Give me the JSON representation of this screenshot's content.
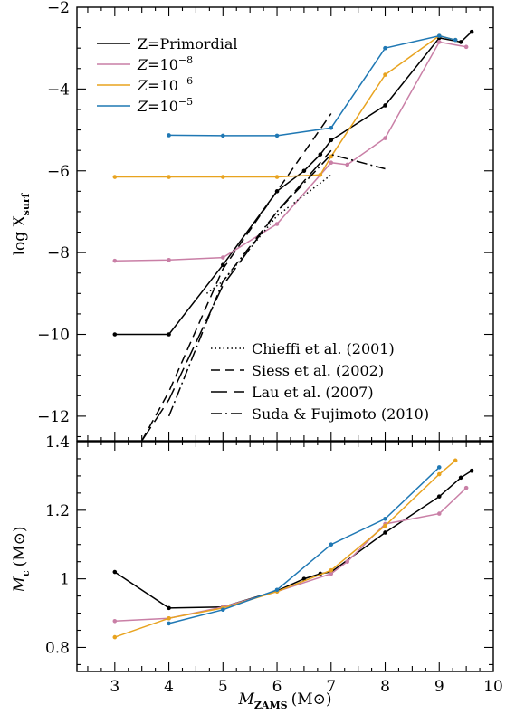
{
  "chart_data": [
    {
      "type": "line",
      "panel": "top",
      "ylabel": "log X",
      "ylabel_subscript": "surf",
      "xlim": [
        2.3,
        10
      ],
      "ylim": [
        -12.6,
        -2
      ],
      "yticks": [
        -12,
        -10,
        -8,
        -6,
        -4,
        -2
      ],
      "ytick_labels": [
        "−12",
        "−10",
        "−8",
        "−6",
        "−4",
        "−2"
      ],
      "xticks": [
        3,
        4,
        5,
        6,
        7,
        8,
        9,
        10
      ],
      "legend_position": "top-left",
      "series": [
        {
          "name": "Z=Primordial",
          "color": "#000000",
          "markers": true,
          "x": [
            3,
            4,
            5,
            6,
            6.5,
            6.8,
            7,
            8,
            9,
            9.4,
            9.6
          ],
          "y": [
            -10.0,
            -10.0,
            -8.3,
            -6.5,
            -6.0,
            -5.6,
            -5.25,
            -4.4,
            -2.75,
            -2.85,
            -2.6
          ]
        },
        {
          "name": "Z=10",
          "name_sup": "−8",
          "color": "#c97fa6",
          "markers": true,
          "x": [
            3,
            4,
            5,
            6,
            7,
            7.3,
            8,
            9,
            9.5
          ],
          "y": [
            -8.2,
            -8.18,
            -8.12,
            -7.3,
            -5.8,
            -5.85,
            -5.2,
            -2.85,
            -2.97
          ]
        },
        {
          "name": "Z=10",
          "name_sup": "−6",
          "color": "#e8a31f",
          "markers": true,
          "x": [
            3,
            4,
            5,
            6,
            6.8,
            7,
            8,
            9,
            9.3
          ],
          "y": [
            -6.15,
            -6.15,
            -6.15,
            -6.15,
            -6.1,
            -5.65,
            -3.65,
            -2.7,
            -2.8
          ]
        },
        {
          "name": "Z=10",
          "name_sup": "−5",
          "color": "#1f78b4",
          "markers": true,
          "x": [
            4,
            5,
            6,
            7,
            8,
            9,
            9.3
          ],
          "y": [
            -5.13,
            -5.14,
            -5.14,
            -4.95,
            -3.0,
            -2.7,
            -2.8
          ]
        },
        {
          "name": "Chieffi et al. (2001)",
          "color": "#000000",
          "dash": "1.5 3",
          "markers": false,
          "x": [
            4.7,
            5,
            6,
            6.5,
            7
          ],
          "y": [
            -9.0,
            -8.7,
            -7.1,
            -6.6,
            -6.1
          ]
        },
        {
          "name": "Siess et al. (2002)",
          "color": "#000000",
          "dash": "10 6",
          "markers": false,
          "x": [
            3.5,
            4,
            5,
            6,
            7
          ],
          "y": [
            -12.6,
            -11.4,
            -8.4,
            -6.5,
            -4.6
          ]
        },
        {
          "name": "Lau et al. (2007)",
          "color": "#000000",
          "dash": "18 7",
          "markers": false,
          "x": [
            3.5,
            4,
            5,
            6,
            7
          ],
          "y": [
            -12.6,
            -11.6,
            -8.8,
            -7.0,
            -5.5
          ]
        },
        {
          "name": "Suda & Fujimoto (2010)",
          "color": "#000000",
          "dash": "12 4 2 4",
          "markers": false,
          "x": [
            4,
            5,
            6,
            7,
            8
          ],
          "y": [
            -12.0,
            -8.7,
            -7.0,
            -5.6,
            -5.95
          ]
        }
      ]
    },
    {
      "type": "line",
      "panel": "bottom",
      "ylabel": "M",
      "ylabel_subscript": "c",
      "ylabel_unit": "(M⊙)",
      "xlabel": "M",
      "xlabel_subscript": "ZAMS",
      "xlabel_unit": "(M⊙)",
      "xlim": [
        2.3,
        10
      ],
      "ylim": [
        0.73,
        1.4
      ],
      "yticks": [
        0.8,
        1,
        1.2,
        1.4
      ],
      "ytick_labels": [
        "0.8",
        "1",
        "1.2",
        "1.4"
      ],
      "xticks": [
        3,
        4,
        5,
        6,
        7,
        8,
        9,
        10
      ],
      "xtick_labels": [
        "3",
        "4",
        "5",
        "6",
        "7",
        "8",
        "9",
        "10"
      ],
      "series": [
        {
          "name": "Z=Primordial",
          "color": "#000000",
          "x": [
            3,
            4,
            5,
            6,
            6.5,
            6.8,
            7,
            8,
            9,
            9.4,
            9.6
          ],
          "y": [
            1.02,
            0.915,
            0.918,
            0.965,
            1.0,
            1.015,
            1.02,
            1.135,
            1.24,
            1.295,
            1.315
          ]
        },
        {
          "name": "Z=10−8",
          "color": "#c97fa6",
          "x": [
            3,
            4,
            5,
            6,
            7,
            7.3,
            8,
            9,
            9.5
          ],
          "y": [
            0.877,
            0.885,
            0.918,
            0.963,
            1.015,
            1.05,
            1.16,
            1.19,
            1.265
          ]
        },
        {
          "name": "Z=10−6",
          "color": "#e8a31f",
          "x": [
            3,
            4,
            5,
            6,
            7,
            8,
            9,
            9.3
          ],
          "y": [
            0.83,
            0.885,
            0.915,
            0.963,
            1.025,
            1.155,
            1.305,
            1.345
          ]
        },
        {
          "name": "Z=10−5",
          "color": "#1f78b4",
          "x": [
            4,
            5,
            6,
            7,
            8,
            9
          ],
          "y": [
            0.87,
            0.91,
            0.968,
            1.1,
            1.175,
            1.325
          ]
        }
      ]
    }
  ]
}
